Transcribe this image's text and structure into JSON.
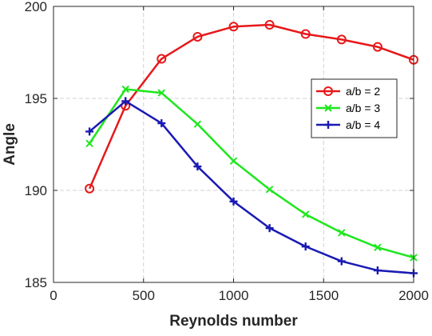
{
  "chart_data": {
    "type": "line",
    "title": "",
    "xlabel": "Reynolds number",
    "ylabel": "Angle",
    "xlim": [
      0,
      2000
    ],
    "ylim": [
      185,
      200
    ],
    "xticks": [
      0,
      500,
      1000,
      1500,
      2000
    ],
    "yticks": [
      185,
      190,
      195,
      200
    ],
    "grid": true,
    "legend_position": "right",
    "x": [
      200,
      400,
      600,
      800,
      1000,
      1200,
      1400,
      1600,
      1800,
      2000
    ],
    "series": [
      {
        "name": "a/b = 2",
        "color": "#e6191b",
        "marker": "circle",
        "values": [
          190.1,
          194.6,
          197.15,
          198.35,
          198.9,
          199.0,
          198.5,
          198.2,
          197.8,
          197.1
        ]
      },
      {
        "name": "a/b = 3",
        "color": "#1ee61e",
        "marker": "x",
        "values": [
          192.55,
          195.5,
          195.3,
          193.6,
          191.6,
          190.05,
          188.7,
          187.7,
          186.9,
          186.35
        ]
      },
      {
        "name": "a/b = 4",
        "color": "#1a1ab4",
        "marker": "plus",
        "values": [
          193.2,
          194.85,
          193.65,
          191.3,
          189.4,
          187.95,
          186.95,
          186.15,
          185.65,
          185.5
        ]
      }
    ]
  }
}
